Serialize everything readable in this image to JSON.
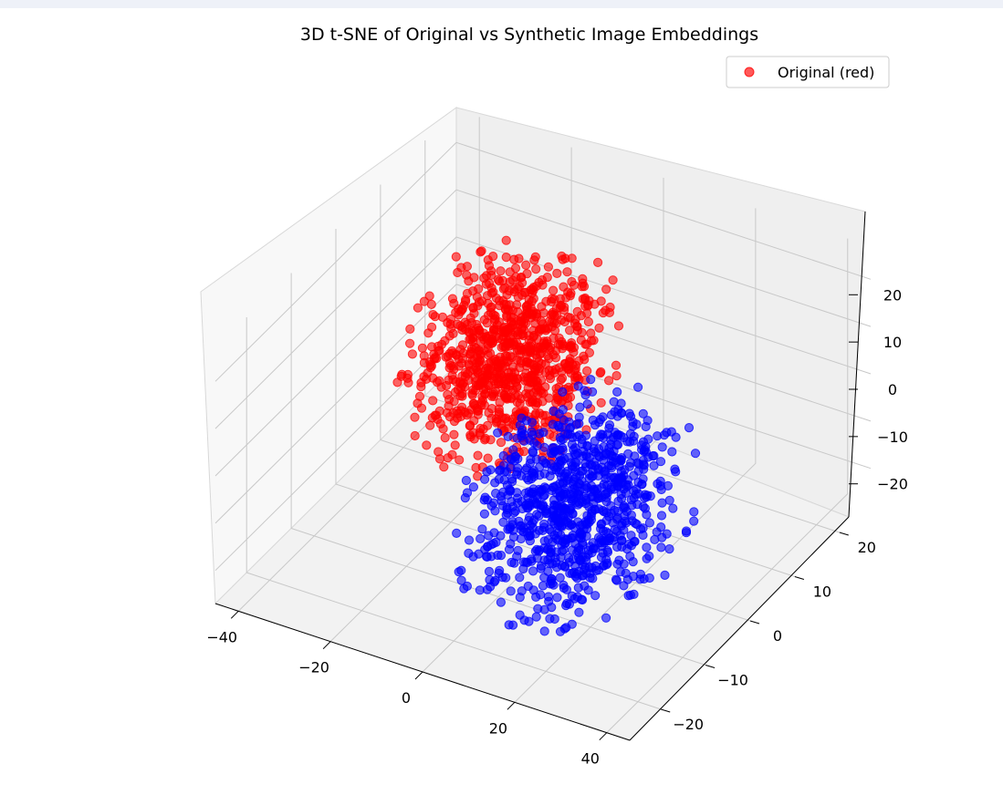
{
  "chart_data": {
    "type": "scatter",
    "projection": "3d",
    "title": "3D t-SNE of Original vs Synthetic Image Embeddings",
    "xlabel": "",
    "ylabel": "",
    "zlabel": "",
    "xlim": [
      -45,
      45
    ],
    "ylim": [
      -27,
      27
    ],
    "zlim": [
      -27,
      27
    ],
    "x_ticks": [
      "−40",
      "−20",
      "0",
      "20",
      "40"
    ],
    "y_ticks": [
      "−20",
      "−10",
      "0",
      "10",
      "20"
    ],
    "z_ticks": [
      "−20",
      "−10",
      "0",
      "10",
      "20"
    ],
    "grid": true,
    "legend": {
      "position": "top-right",
      "entries": [
        "Original (red)"
      ]
    },
    "series": [
      {
        "name": "Original (red)",
        "color": "#ff0000",
        "count": 900,
        "center": [
          -15,
          8,
          2
        ],
        "spread": [
          9,
          7,
          9
        ]
      },
      {
        "color": "#0000ff",
        "count": 900,
        "center": [
          15,
          -8,
          -5
        ],
        "spread": [
          9,
          8,
          9
        ]
      }
    ]
  }
}
